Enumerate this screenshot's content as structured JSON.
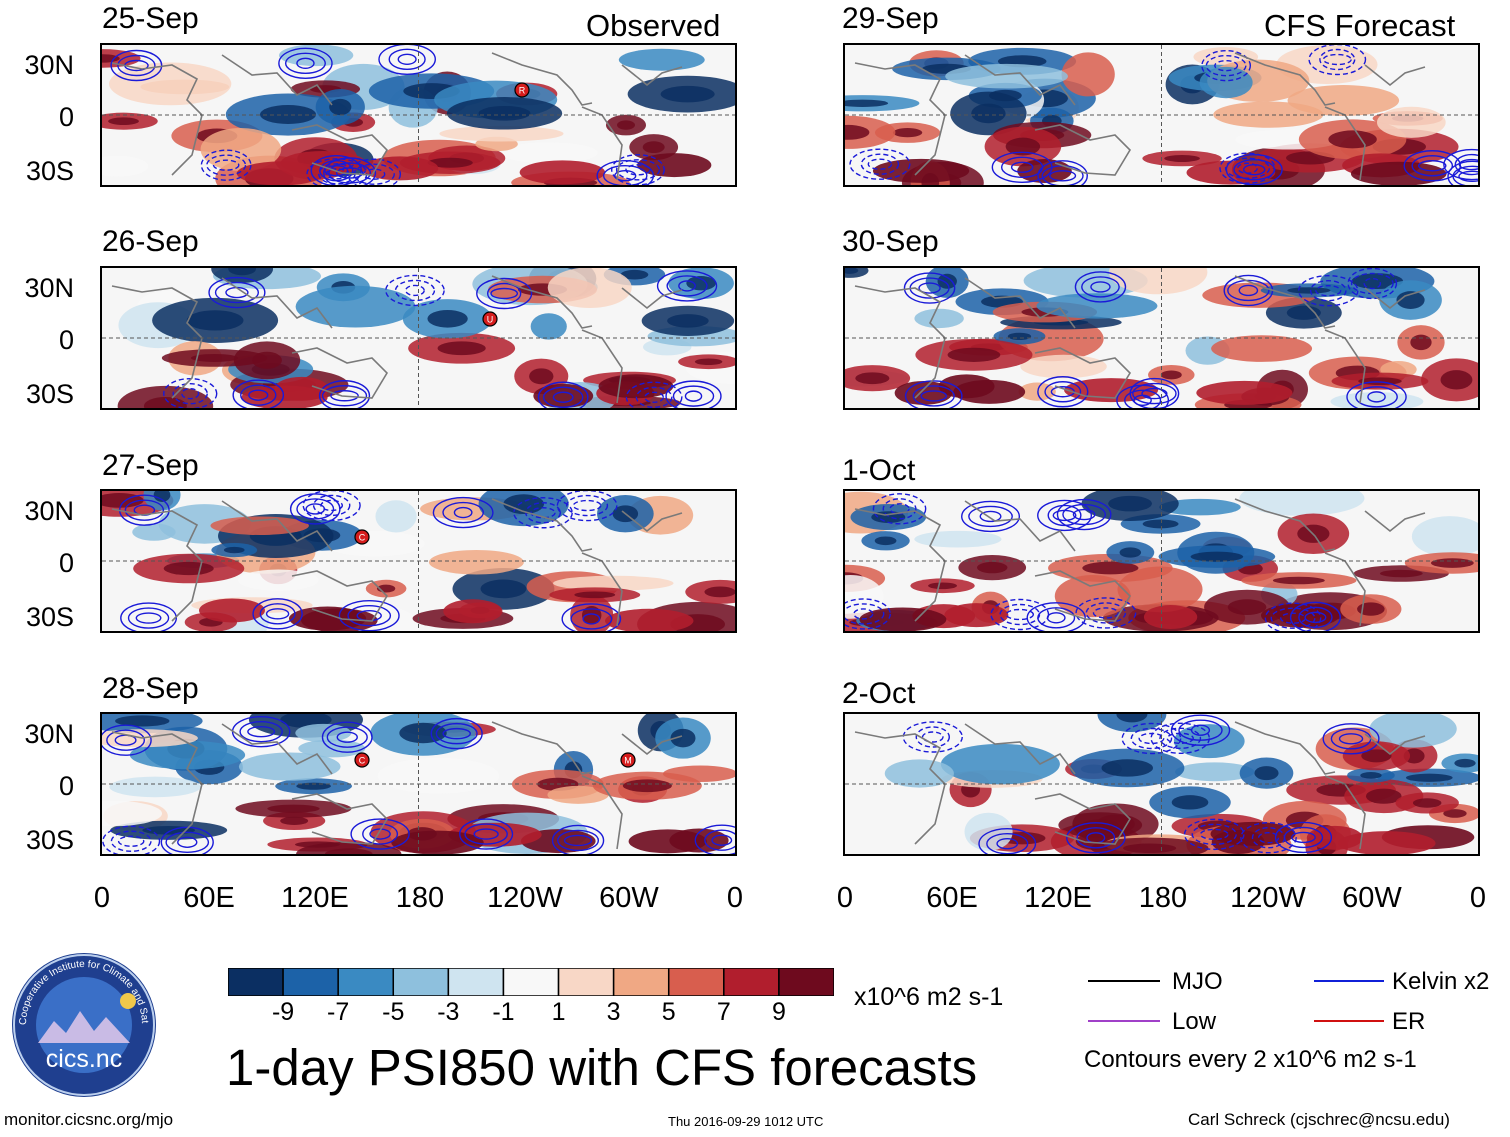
{
  "chart_data": {
    "type": "heatmap",
    "title": "1-day PSI850 with CFS forecasts",
    "panel_headers": {
      "observed": "Observed",
      "forecast": "CFS Forecast"
    },
    "lat_ticks": [
      "30N",
      "0",
      "30S"
    ],
    "lon_ticks": [
      "0",
      "60E",
      "120E",
      "180",
      "120W",
      "60W",
      "0"
    ],
    "observed_panels": [
      {
        "date": "25-Sep",
        "storms": [
          "R"
        ]
      },
      {
        "date": "26-Sep",
        "storms": [
          "U"
        ]
      },
      {
        "date": "27-Sep",
        "storms": [
          "C"
        ]
      },
      {
        "date": "28-Sep",
        "storms": [
          "C",
          "M"
        ]
      }
    ],
    "forecast_panels": [
      {
        "date": "29-Sep"
      },
      {
        "date": "30-Sep"
      },
      {
        "date": "1-Oct"
      },
      {
        "date": "2-Oct"
      }
    ],
    "colorbar": {
      "levels": [
        -11,
        -9,
        -7,
        -5,
        -3,
        -1,
        1,
        3,
        5,
        7,
        9,
        11
      ],
      "labels": [
        "-9",
        "-7",
        "-5",
        "-3",
        "-1",
        "1",
        "3",
        "5",
        "7",
        "9"
      ],
      "colors": [
        "#0b2f62",
        "#1c62a8",
        "#3a8ac2",
        "#8ec0dd",
        "#cfe4f0",
        "#f8f8f8",
        "#f8d7c6",
        "#f0a884",
        "#d85e4e",
        "#b11e2d",
        "#6e0a1e"
      ],
      "units": "x10^6 m2 s-1"
    },
    "contour_legend": {
      "items": [
        {
          "label": "MJO",
          "color": "#000000"
        },
        {
          "label": "Kelvin x2",
          "color": "#1020d8"
        },
        {
          "label": "Low",
          "color": "#a040c8"
        },
        {
          "label": "ER",
          "color": "#d01010"
        }
      ],
      "note": "Contours every 2 x10^6 m2 s-1"
    }
  },
  "logo": {
    "text": "cics.nc",
    "ring_text": "Cooperative Institute for Climate and Satellites"
  },
  "footer": {
    "left": "monitor.cicsnc.org/mjo",
    "center": "Thu 2016-09-29 1012 UTC",
    "right": "Carl Schreck (cjschrec@ncsu.edu)"
  }
}
